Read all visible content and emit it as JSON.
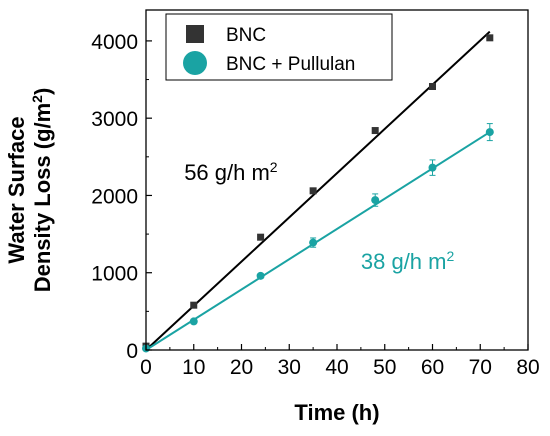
{
  "chart_data": {
    "type": "scatter",
    "xlabel": "Time (h)",
    "ylabel_lines": [
      "Water Surface",
      "Density Loss (g/m"
    ],
    "ylabel_superscript": "2",
    "ylabel_close": ")",
    "xlim": [
      0,
      80
    ],
    "ylim": [
      0,
      4400
    ],
    "x_ticks": [
      "0",
      "10",
      "20",
      "30",
      "40",
      "50",
      "60",
      "70",
      "80"
    ],
    "y_ticks": [
      "0",
      "1000",
      "2000",
      "3000",
      "4000"
    ],
    "grid": false,
    "legend_position": "top-left",
    "series": [
      {
        "name": "BNC",
        "marker": "square",
        "color": "#333333",
        "fit_color": "#000000",
        "x": [
          0,
          10,
          24,
          35,
          48,
          60,
          72
        ],
        "y": [
          50,
          580,
          1460,
          2060,
          2840,
          3410,
          4040
        ],
        "err": [
          0,
          20,
          20,
          25,
          30,
          30,
          35
        ],
        "fit": {
          "x": [
            0,
            72
          ],
          "y": [
            0,
            4120
          ]
        },
        "annotation": {
          "text": "56 g/h m",
          "sup": "2",
          "x": 8,
          "y": 2200
        }
      },
      {
        "name": "BNC + Pullulan",
        "marker": "circle",
        "color": "#1aa3a3",
        "fit_color": "#1aa3a3",
        "x": [
          0,
          10,
          24,
          35,
          48,
          60,
          72
        ],
        "y": [
          20,
          370,
          960,
          1390,
          1940,
          2360,
          2820
        ],
        "err": [
          0,
          20,
          30,
          60,
          80,
          100,
          110
        ],
        "fit": {
          "x": [
            0,
            72
          ],
          "y": [
            0,
            2820
          ]
        },
        "annotation": {
          "text": "38 g/h m",
          "sup": "2",
          "x": 45,
          "y": 1050
        }
      }
    ]
  }
}
